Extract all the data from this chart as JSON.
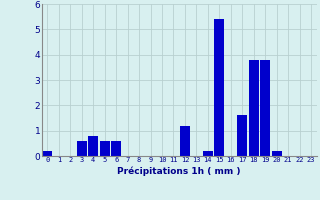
{
  "values": [
    0.2,
    0.0,
    0.0,
    0.6,
    0.8,
    0.6,
    0.6,
    0.0,
    0.0,
    0.0,
    0.0,
    0.0,
    1.2,
    0.0,
    0.2,
    5.4,
    0.0,
    1.6,
    3.8,
    3.8,
    0.2,
    0.0,
    0.0,
    0.0
  ],
  "categories": [
    "0",
    "1",
    "2",
    "3",
    "4",
    "5",
    "6",
    "7",
    "8",
    "9",
    "10",
    "11",
    "12",
    "13",
    "14",
    "15",
    "16",
    "17",
    "18",
    "19",
    "20",
    "21",
    "22",
    "23"
  ],
  "bar_color": "#0000cc",
  "background_color": "#d8f0f0",
  "grid_color": "#b8d0d0",
  "xlabel": "Précipitations 1h ( mm )",
  "xlabel_color": "#00008b",
  "tick_color": "#00008b",
  "ylim": [
    0,
    6
  ],
  "yticks": [
    0,
    1,
    2,
    3,
    4,
    5,
    6
  ]
}
